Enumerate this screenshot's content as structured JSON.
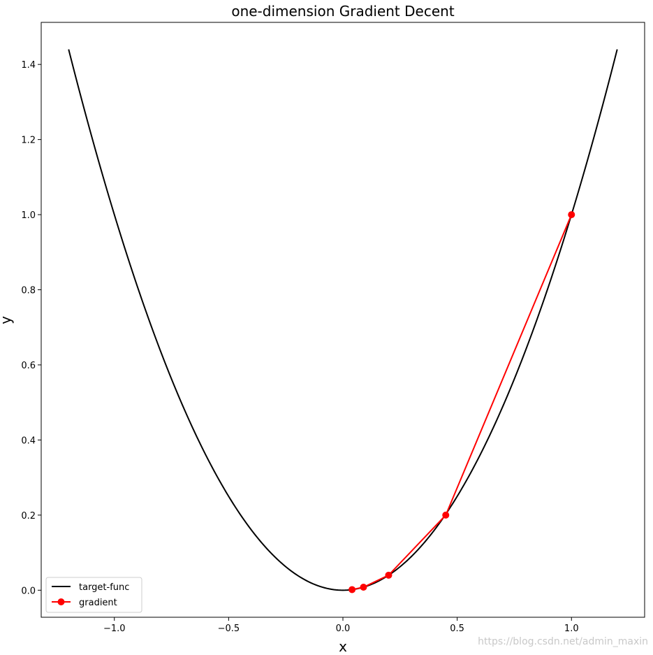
{
  "chart_data": {
    "type": "line",
    "title": "one-dimension Gradient Decent",
    "xlabel": "x",
    "ylabel": "y",
    "xlim": [
      -1.32,
      1.32
    ],
    "ylim": [
      -0.072,
      1.512
    ],
    "xticks": [
      -1.0,
      -0.5,
      0.0,
      0.5,
      1.0
    ],
    "xtick_labels": [
      "−1.0",
      "−0.5",
      "0.0",
      "0.5",
      "1.0"
    ],
    "yticks": [
      0.0,
      0.2,
      0.4,
      0.6,
      0.8,
      1.0,
      1.2,
      1.4
    ],
    "ytick_labels": [
      "0.0",
      "0.2",
      "0.4",
      "0.6",
      "0.8",
      "1.0",
      "1.2",
      "1.4"
    ],
    "grid": false,
    "legend_position": "lower-left",
    "series": [
      {
        "name": "target-func",
        "color": "#000000",
        "function": "y = x^2",
        "x_range": [
          -1.2,
          1.2
        ],
        "marker": "none"
      },
      {
        "name": "gradient",
        "color": "#ff0000",
        "marker": "circle",
        "x": [
          1.0,
          0.45,
          0.2,
          0.09,
          0.04
        ],
        "y": [
          1.0,
          0.2,
          0.04,
          0.008,
          0.0016
        ]
      }
    ]
  },
  "watermark": "https://blog.csdn.net/admin_maxin"
}
